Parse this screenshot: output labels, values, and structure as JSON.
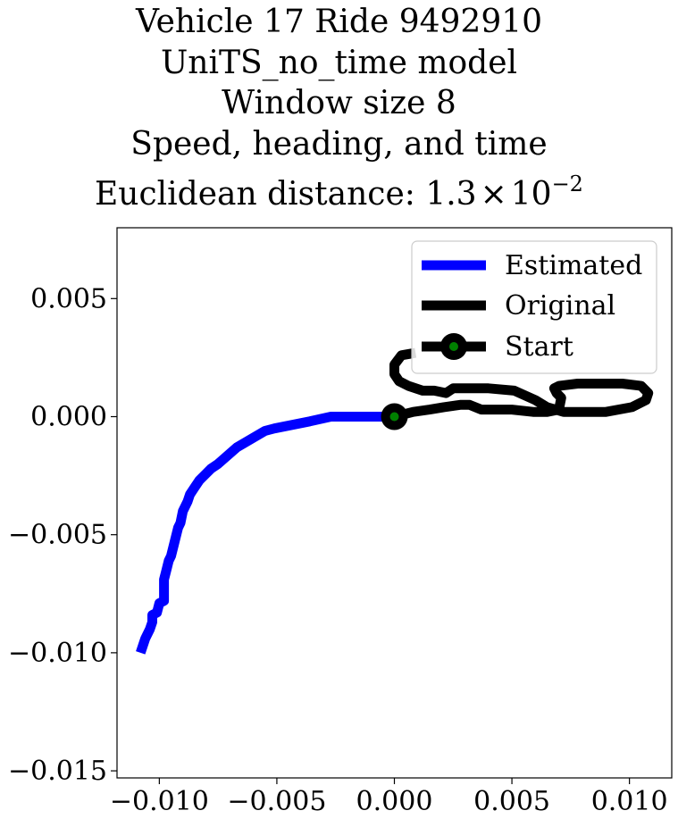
{
  "chart_data": {
    "type": "line",
    "title_lines": [
      "Vehicle 17 Ride 9492910",
      "UniTS_no_time model",
      "Window size 8",
      "Speed, heading, and time"
    ],
    "title_distance_prefix": "Euclidean distance: 1.3",
    "title_distance_times": "×",
    "title_distance_base": "10",
    "title_distance_exp": "−2",
    "xlim": [
      -0.0118,
      0.0118
    ],
    "ylim": [
      -0.0153,
      0.008
    ],
    "xticks": [
      -0.01,
      -0.005,
      0.0,
      0.005,
      0.01
    ],
    "xtick_labels": [
      "−0.010",
      "−0.005",
      "0.000",
      "0.005",
      "0.010"
    ],
    "yticks": [
      -0.015,
      -0.01,
      -0.005,
      0.0,
      0.005
    ],
    "ytick_labels": [
      "−0.015",
      "−0.010",
      "−0.005",
      "0.000",
      "0.005"
    ],
    "legend_position": "top-right",
    "series": [
      {
        "name": "Estimated",
        "color": "#0000ff",
        "x": [
          0.0,
          -0.0027,
          -0.0036,
          -0.0051,
          -0.0055,
          -0.0067,
          -0.0075,
          -0.0078,
          -0.008,
          -0.0083,
          -0.0085,
          -0.0087,
          -0.0088,
          -0.009,
          -0.0091,
          -0.0092,
          -0.0095,
          -0.0096,
          -0.0097,
          -0.0098,
          -0.0098,
          -0.01,
          -0.0101,
          -0.0103,
          -0.0103,
          -0.0104,
          -0.0106,
          -0.0108
        ],
        "y": [
          0.0,
          0.0,
          -0.0002,
          -0.0005,
          -0.0006,
          -0.0013,
          -0.002,
          -0.0022,
          -0.0024,
          -0.0027,
          -0.003,
          -0.0033,
          -0.0036,
          -0.004,
          -0.0045,
          -0.0047,
          -0.0059,
          -0.0061,
          -0.0065,
          -0.0069,
          -0.0078,
          -0.0079,
          -0.0083,
          -0.0084,
          -0.0087,
          -0.009,
          -0.0094,
          -0.01
        ]
      },
      {
        "name": "Original",
        "color": "#000000",
        "x": [
          0.0,
          0.0008,
          0.0015,
          0.0021,
          0.0028,
          0.0032,
          0.0037,
          0.0042,
          0.005,
          0.0059,
          0.0065,
          0.007,
          0.0071,
          0.0069,
          0.0068,
          0.007,
          0.0078,
          0.0088,
          0.0097,
          0.0105,
          0.0108,
          0.0107,
          0.0101,
          0.009,
          0.0072,
          0.0065,
          0.006,
          0.0051,
          0.004,
          0.0025,
          0.0022,
          0.0017,
          0.0012,
          0.0006,
          0.0002,
          0.0,
          0.0,
          0.0003,
          0.0009
        ],
        "y": [
          0.0,
          0.0002,
          0.0003,
          0.0004,
          0.0005,
          0.0005,
          0.0003,
          0.0003,
          0.0003,
          0.0002,
          0.0002,
          0.0003,
          0.0008,
          0.001,
          0.0012,
          0.0013,
          0.0014,
          0.0014,
          0.0014,
          0.0013,
          0.001,
          0.0007,
          0.0004,
          0.0002,
          0.0002,
          0.0004,
          0.0007,
          0.0011,
          0.0012,
          0.0012,
          0.001,
          0.0011,
          0.0011,
          0.0013,
          0.0015,
          0.0018,
          0.0022,
          0.0026,
          0.0027
        ]
      }
    ],
    "start_point": {
      "name": "Start",
      "x": 0.0,
      "y": 0.0,
      "marker_color": "#000000",
      "center_color": "#008000"
    }
  }
}
